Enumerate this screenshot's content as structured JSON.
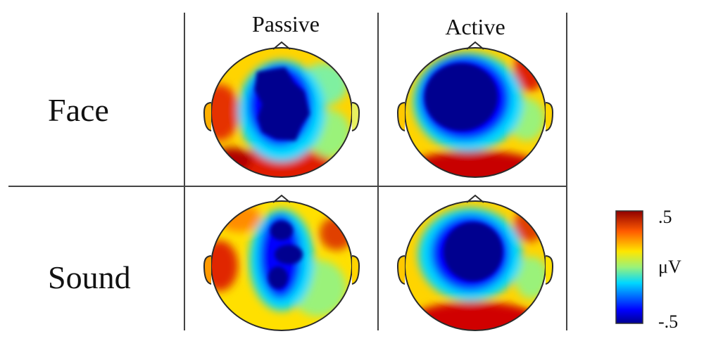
{
  "columns": [
    "Passive",
    "Active"
  ],
  "rows": [
    "Face",
    "Sound"
  ],
  "colorbar": {
    "max_label": ".5",
    "unit_label": "μV",
    "min_label": "-.5"
  },
  "colors": {
    "deep_blue": "#00008f",
    "blue": "#0000ff",
    "cyan": "#00d8ff",
    "green": "#9af27a",
    "yellow": "#ffe600",
    "orange": "#ff8c00",
    "red": "#e60000",
    "dark_red": "#8f0000",
    "outline": "#2a2a2a",
    "grid_line": "#444444"
  }
}
